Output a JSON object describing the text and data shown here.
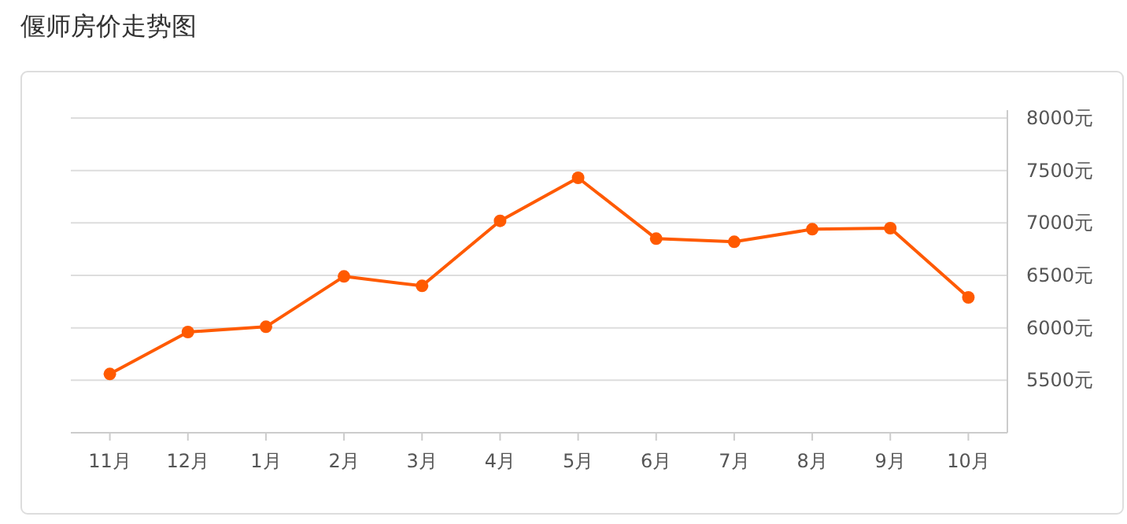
{
  "chart_data": {
    "type": "line",
    "title": "偃师房价走势图",
    "categories": [
      "11月",
      "12月",
      "1月",
      "2月",
      "3月",
      "4月",
      "5月",
      "6月",
      "7月",
      "8月",
      "9月",
      "10月"
    ],
    "series": [
      {
        "color": "#ff5a00",
        "values": [
          5560,
          5960,
          6010,
          6490,
          6400,
          7020,
          7430,
          6850,
          6820,
          6940,
          6950,
          6290
        ]
      }
    ],
    "ylim": [
      5000,
      8000
    ],
    "yticks": [
      {
        "value": 5500,
        "label": "5500元"
      },
      {
        "value": 6000,
        "label": "6000元"
      },
      {
        "value": 6500,
        "label": "6500元"
      },
      {
        "value": 7000,
        "label": "7000元"
      },
      {
        "value": 7500,
        "label": "7500元"
      },
      {
        "value": 8000,
        "label": "8000元"
      }
    ],
    "grid": "y",
    "marker": "circle",
    "line_style": "solid"
  }
}
